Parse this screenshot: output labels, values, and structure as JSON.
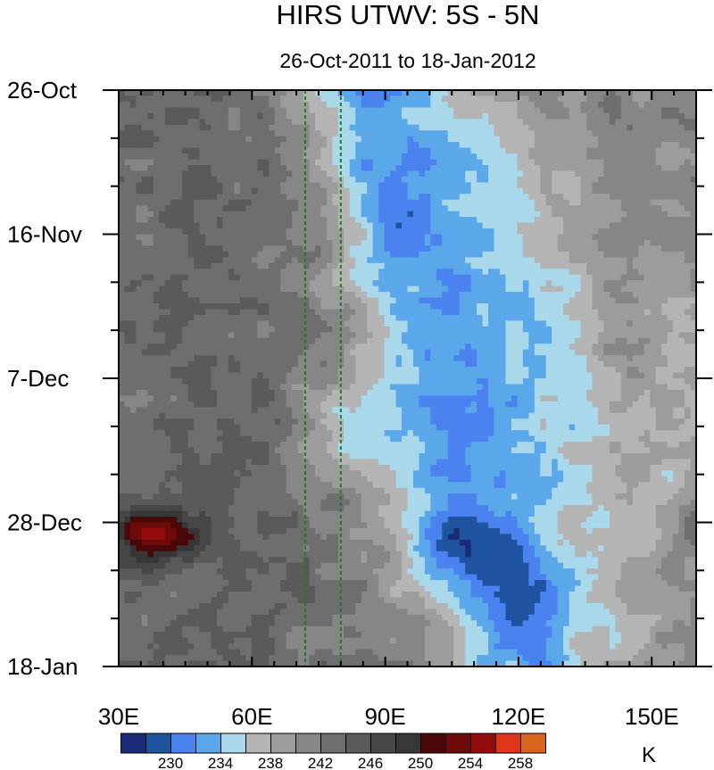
{
  "chart_data": {
    "type": "heatmap",
    "title": "HIRS UTWV: 5S - 5N",
    "subtitle": "26-Oct-2011 to 18-Jan-2012",
    "x_axis": {
      "range": [
        30,
        160
      ],
      "ticks": [
        {
          "value": 30,
          "label": "30E"
        },
        {
          "value": 60,
          "label": "60E"
        },
        {
          "value": 90,
          "label": "90E"
        },
        {
          "value": 120,
          "label": "120E"
        },
        {
          "value": 150,
          "label": "150E"
        }
      ]
    },
    "y_axis": {
      "range_days": [
        0,
        84
      ],
      "direction": "down",
      "ticks": [
        {
          "value": 0,
          "label": "26-Oct"
        },
        {
          "value": 21,
          "label": "16-Nov"
        },
        {
          "value": 42,
          "label": "7-Dec"
        },
        {
          "value": 63,
          "label": "28-Dec"
        },
        {
          "value": 84,
          "label": "18-Jan"
        }
      ]
    },
    "reference_lines_lon": [
      72,
      80
    ],
    "colorbar": {
      "unit": "K",
      "levels": [
        228,
        230,
        232,
        234,
        236,
        238,
        240,
        242,
        244,
        246,
        248,
        250,
        252,
        254,
        256,
        258
      ],
      "colors": [
        "#1c2a7a",
        "#1f55a0",
        "#4a82f0",
        "#5aa8ea",
        "#a8d8ea",
        "#b4b4b4",
        "#9c9c9c",
        "#868686",
        "#6e6e6e",
        "#5a5a5a",
        "#474747",
        "#373737",
        "#4a0808",
        "#6e0a0a",
        "#940d0d",
        "#e0361a",
        "#d8651e"
      ],
      "tick_labels": [
        "230",
        "234",
        "238",
        "242",
        "246",
        "250",
        "254",
        "258"
      ]
    },
    "features": [
      {
        "name": "dry band (blue) propagating eastward",
        "start": {
          "lon": 85,
          "day": 2
        },
        "end": {
          "lon": 125,
          "day": 80
        }
      },
      {
        "name": "warm maximum",
        "lon": 40,
        "day": 65,
        "value": 256
      }
    ]
  }
}
